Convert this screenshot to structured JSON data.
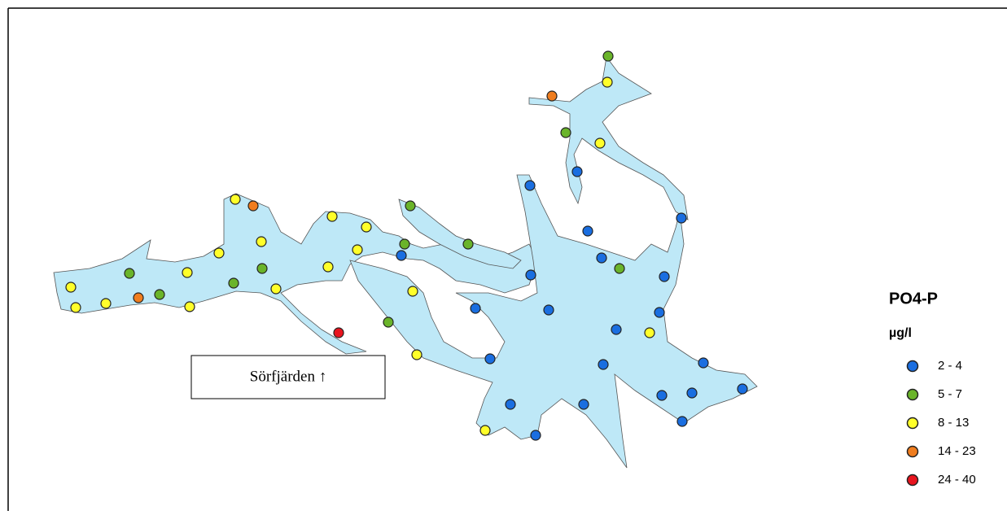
{
  "map": {
    "label": "Sörfjärden ↑",
    "legend": {
      "title": "PO4-P",
      "unit": "µg/l",
      "items": [
        {
          "label": "2 - 4",
          "color": "#1a6ee0"
        },
        {
          "label": "5 - 7",
          "color": "#6ab42a"
        },
        {
          "label": "8 - 13",
          "color": "#ffff2a"
        },
        {
          "label": "14 - 23",
          "color": "#f07d1e"
        },
        {
          "label": "24 - 40",
          "color": "#e8141e"
        }
      ]
    }
  }
}
